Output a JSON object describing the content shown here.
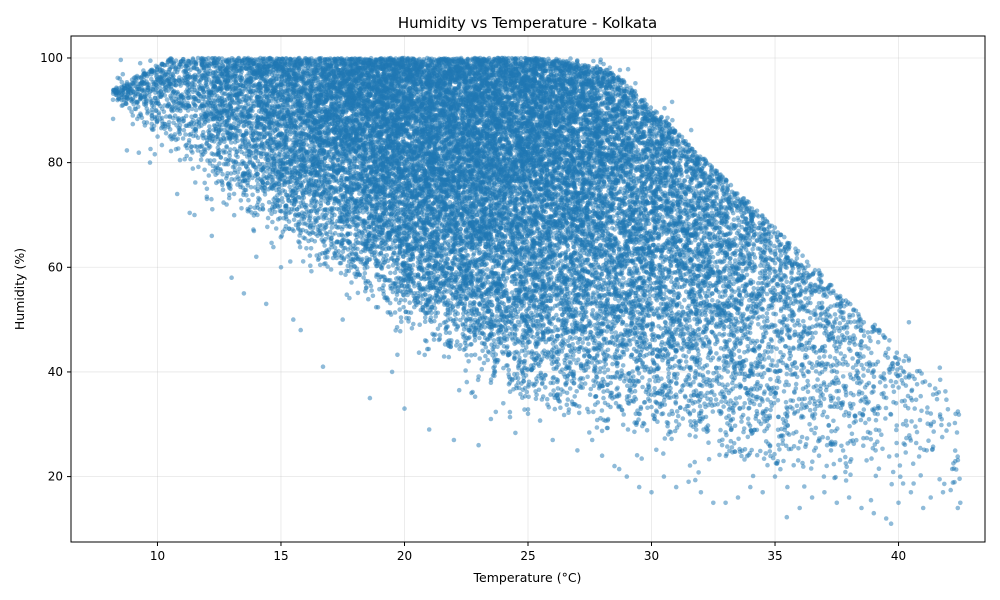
{
  "chart_data": {
    "type": "scatter",
    "title": "Humidity vs Temperature - Kolkata",
    "xlabel": "Temperature (°C)",
    "ylabel": "Humidity (%)",
    "xlim": [
      6.5,
      43.5
    ],
    "ylim": [
      7.5,
      104.2
    ],
    "xticks": [
      10,
      15,
      20,
      25,
      30,
      35,
      40
    ],
    "yticks": [
      20,
      40,
      60,
      80,
      100
    ],
    "grid": true,
    "point_color": "#1f77b4",
    "point_alpha": 0.5,
    "approx_point_count": 60000,
    "series": [
      {
        "x": [
          8.2,
          8.6,
          9.0,
          9.3,
          9.5,
          9.7,
          10.0,
          10.2,
          10.5,
          10.8,
          11.0,
          11.5,
          12.0,
          12.2,
          12.8,
          13.0,
          13.5,
          14.0,
          14.4,
          15.0,
          15.5,
          15.8,
          16.7,
          17.5,
          18.6,
          19.5,
          20.0,
          21.0,
          22.0,
          23.0,
          23.5,
          24.0,
          25.0,
          26.0,
          27.0,
          27.6,
          28.0,
          28.5,
          29.0,
          29.5,
          30.0,
          30.5,
          31.0,
          31.5,
          32.0,
          32.5,
          33.0,
          33.5,
          34.0,
          34.5,
          35.0,
          35.5,
          36.0,
          36.5,
          37.0,
          37.5,
          38.0,
          38.5,
          39.0,
          39.5,
          39.7,
          40.0,
          40.5,
          41.0,
          41.3,
          41.8,
          42.5,
          42.4
        ],
        "y": [
          92,
          91,
          89,
          99,
          93,
          80,
          88,
          96,
          85,
          74,
          93,
          70,
          75,
          66,
          72,
          58,
          55,
          62,
          53,
          60,
          50,
          48,
          41,
          50,
          35,
          40,
          33,
          29,
          27,
          26,
          31,
          34,
          32,
          27,
          25,
          27,
          24,
          22,
          20,
          18,
          17,
          20,
          18,
          19,
          17,
          15,
          15,
          16,
          18,
          17,
          20,
          18,
          14,
          16,
          17,
          15,
          16,
          14,
          13,
          12,
          11,
          15,
          17,
          14,
          16,
          17,
          15,
          14
        ]
      }
    ]
  }
}
